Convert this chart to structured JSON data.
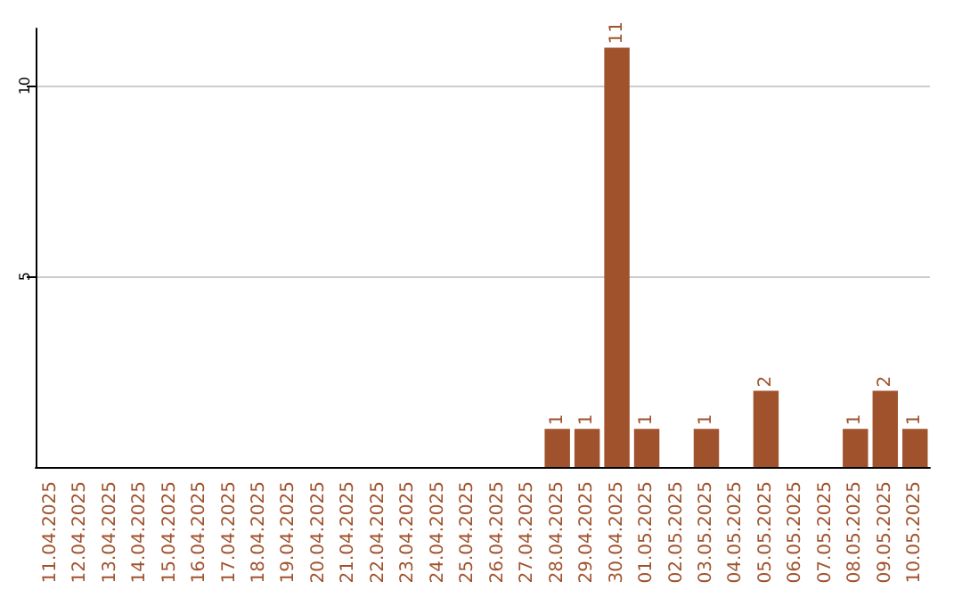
{
  "chart_data": {
    "type": "bar",
    "categories": [
      "11.04.2025",
      "12.04.2025",
      "13.04.2025",
      "14.04.2025",
      "15.04.2025",
      "16.04.2025",
      "17.04.2025",
      "18.04.2025",
      "19.04.2025",
      "20.04.2025",
      "21.04.2025",
      "22.04.2025",
      "23.04.2025",
      "24.04.2025",
      "25.04.2025",
      "26.04.2025",
      "27.04.2025",
      "28.04.2025",
      "29.04.2025",
      "30.04.2025",
      "01.05.2025",
      "02.05.2025",
      "03.05.2025",
      "04.05.2025",
      "05.05.2025",
      "06.05.2025",
      "07.05.2025",
      "08.05.2025",
      "09.05.2025",
      "10.05.2025"
    ],
    "values": [
      0,
      0,
      0,
      0,
      0,
      0,
      0,
      0,
      0,
      0,
      0,
      0,
      0,
      0,
      0,
      0,
      0,
      1,
      1,
      11,
      1,
      0,
      1,
      0,
      2,
      0,
      0,
      1,
      2,
      1
    ],
    "value_labels": [
      null,
      null,
      null,
      null,
      null,
      null,
      null,
      null,
      null,
      null,
      null,
      null,
      null,
      null,
      null,
      null,
      null,
      "1",
      "1",
      "11",
      "1",
      null,
      "1",
      null,
      "2",
      null,
      null,
      "1",
      "2",
      "1"
    ],
    "color": "#a0522d",
    "ylim": [
      0,
      11.5
    ],
    "yticks": [
      5,
      10
    ],
    "grid": "y"
  }
}
